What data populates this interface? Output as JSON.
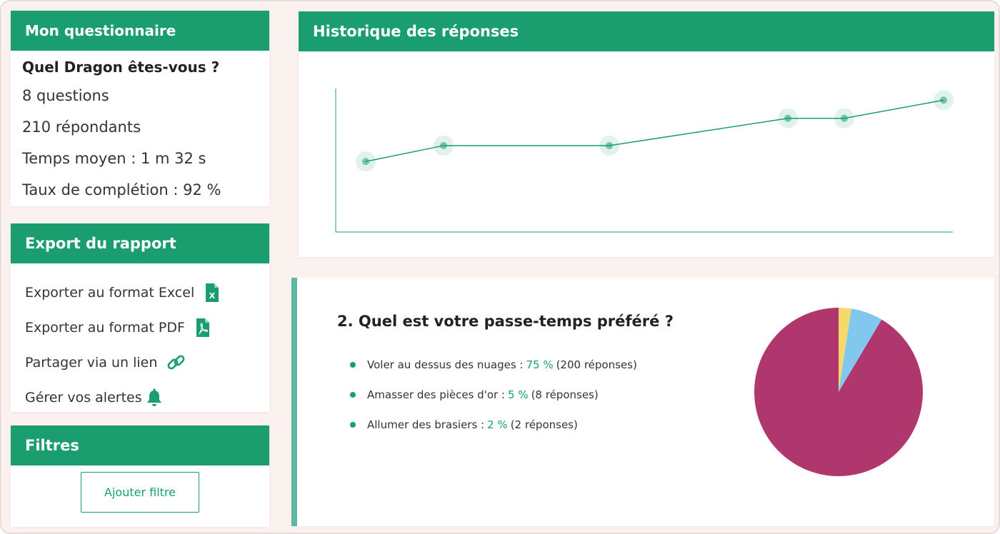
{
  "questionnaire": {
    "header": "Mon questionnaire",
    "title": "Quel Dragon êtes-vous ?",
    "questions": "8  questions",
    "respondents": "210 répondants",
    "avg_time": "Temps moyen : 1 m 32 s",
    "completion": "Taux de complétion : 92 %"
  },
  "export": {
    "header": "Export du rapport",
    "items": [
      {
        "label": "Exporter au format Excel",
        "icon": "excel-icon"
      },
      {
        "label": "Exporter au format PDF",
        "icon": "pdf-icon"
      },
      {
        "label": "Partager via un lien",
        "icon": "link-icon"
      },
      {
        "label": "Gérer vos alertes",
        "icon": "bell-icon"
      }
    ]
  },
  "filters": {
    "header": "Filtres",
    "add_button": "Ajouter filtre"
  },
  "history": {
    "header": "Historique des réponses"
  },
  "question2": {
    "title": "2. Quel est votre passe-temps préféré ?",
    "answers": [
      {
        "label": "Voler au dessus des nuages :",
        "pct": "75 %",
        "count": "(200 réponses)"
      },
      {
        "label": "Amasser des pièces d'or :",
        "pct": "5 %",
        "count": "(8 réponses)"
      },
      {
        "label": "Allumer des brasiers :",
        "pct": "2 %",
        "count": "(2 réponses)"
      }
    ]
  },
  "colors": {
    "accent": "#1a9e6f",
    "pie_main": "#b0376e",
    "pie_blue": "#82c8ee",
    "pie_yellow": "#f7d86b"
  },
  "chart_data": [
    {
      "type": "line",
      "title": "Historique des réponses",
      "xlabel": "",
      "ylabel": "",
      "x": [
        1,
        2,
        3,
        4,
        5,
        6
      ],
      "series": [
        {
          "values": [
            3.1,
            3.8,
            3.8,
            5.0,
            5.0,
            5.8
          ]
        }
      ],
      "ylim": [
        0,
        7
      ],
      "grid": false,
      "legend": "none"
    },
    {
      "type": "pie",
      "categories": [
        "Voler au dessus des nuages",
        "Amasser des pièces d'or",
        "Allumer des brasiers"
      ],
      "values": [
        75,
        5,
        2
      ]
    }
  ]
}
